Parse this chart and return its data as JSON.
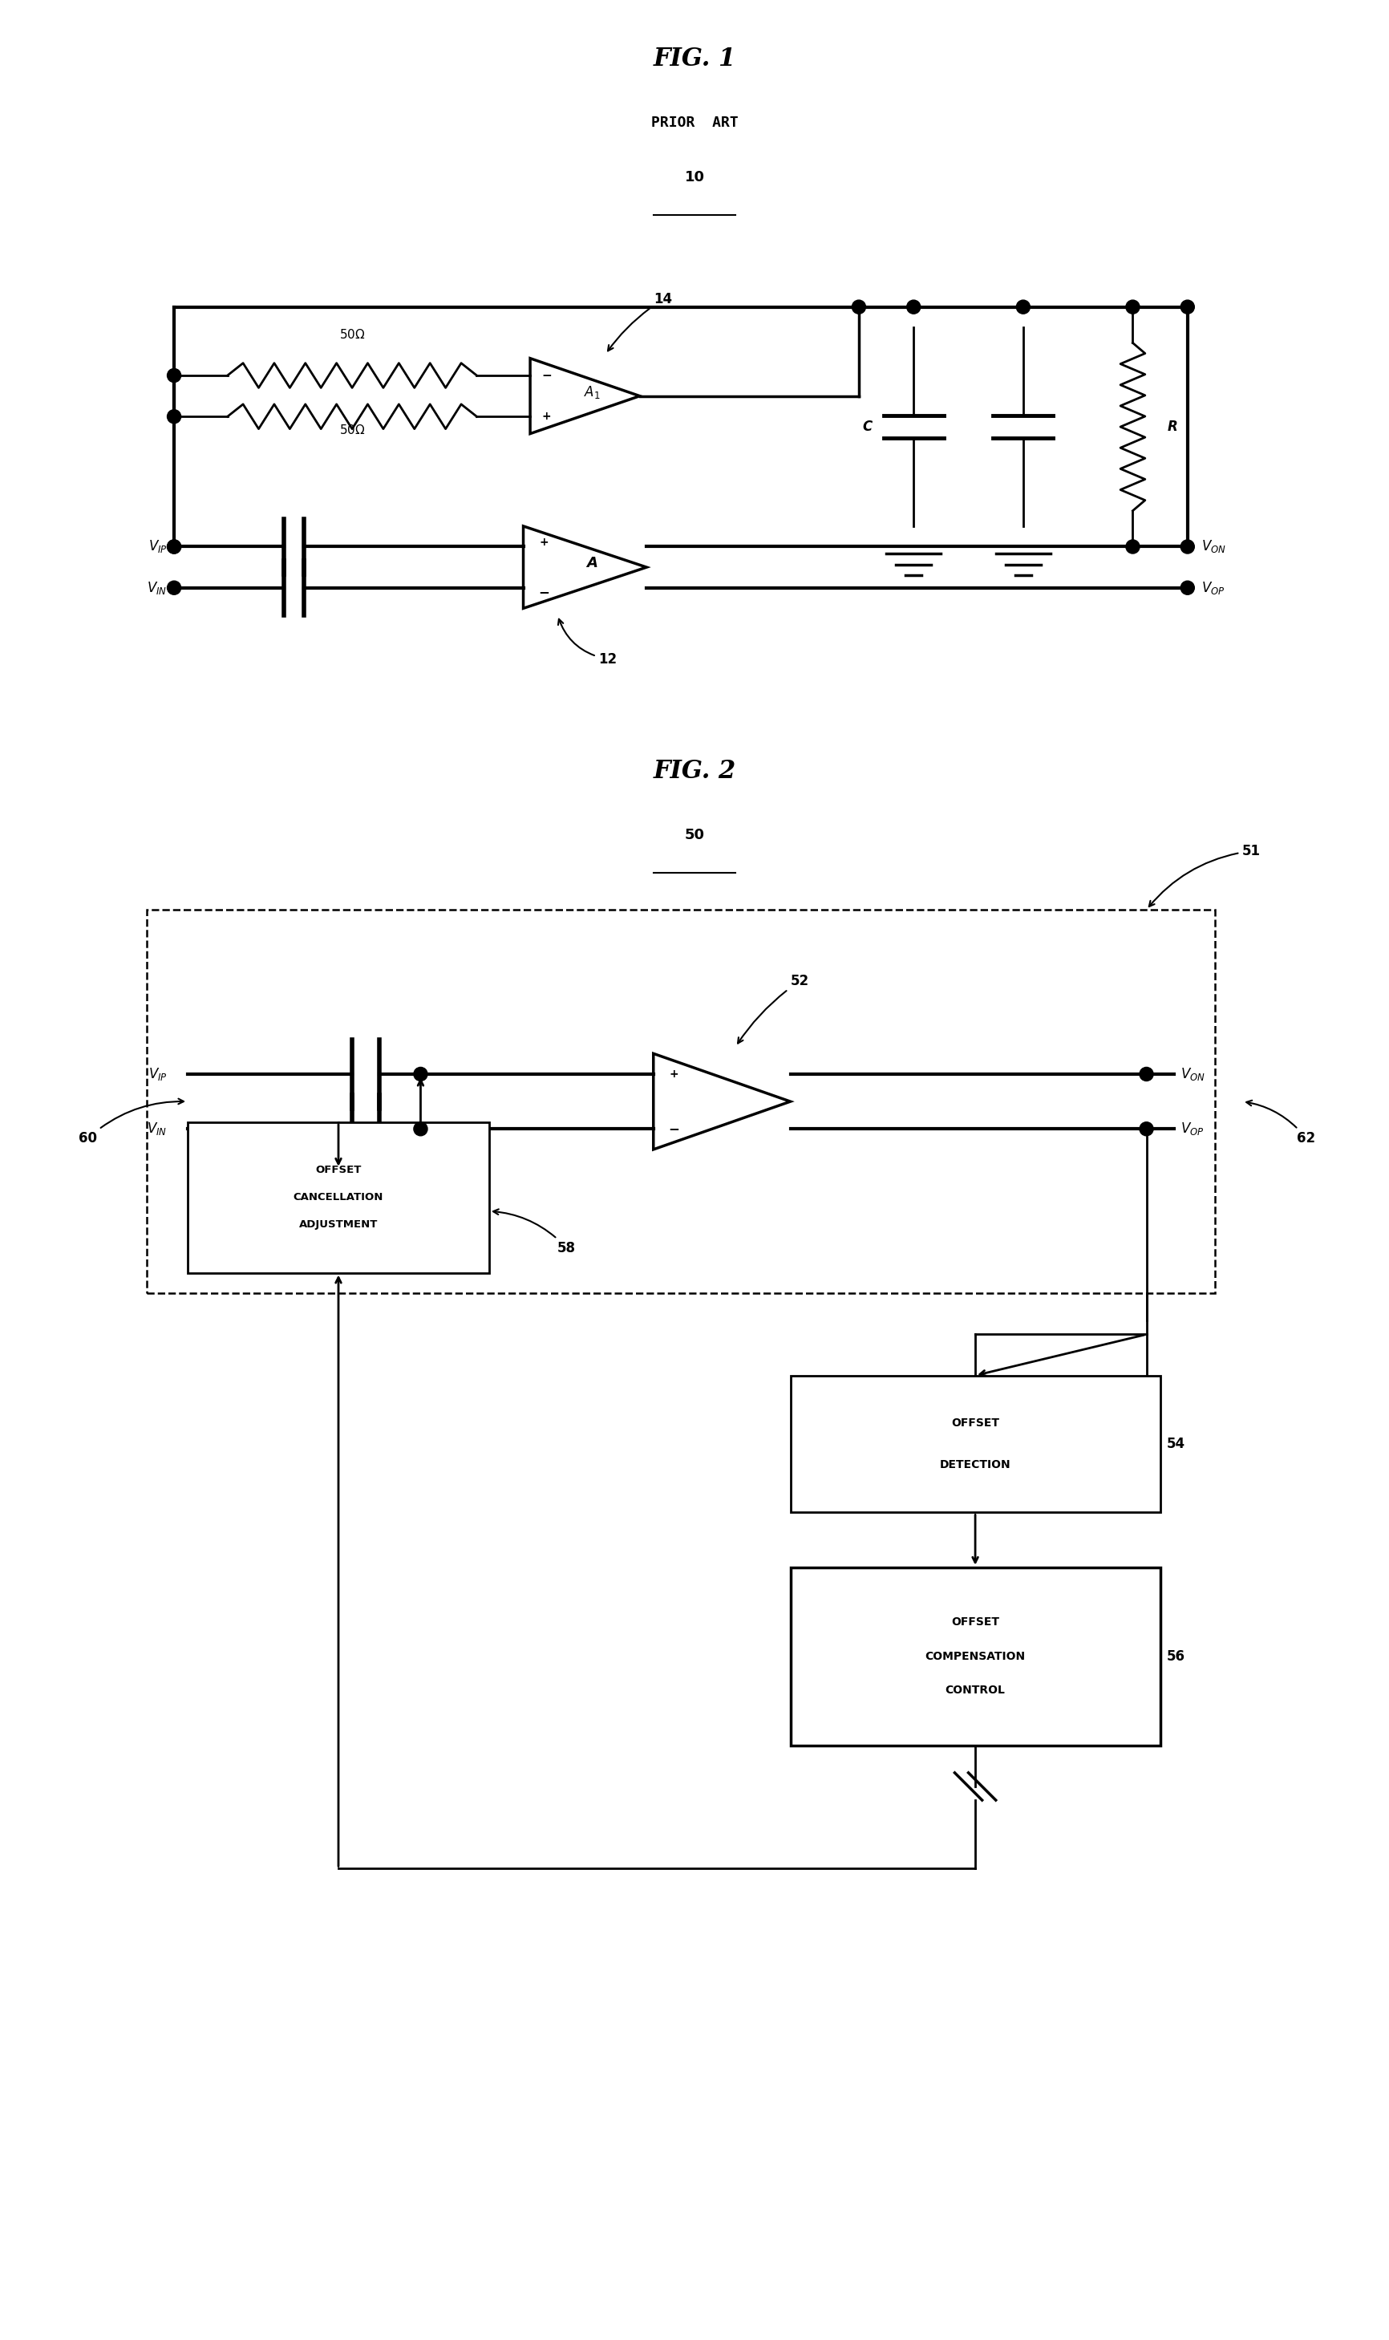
{
  "fig_width": 17.32,
  "fig_height": 29.17,
  "bg_color": "#ffffff",
  "lw": 2.0,
  "tlw": 3.0,
  "fig1_title": "FIG. 1",
  "fig1_subtitle": "PRIOR  ART",
  "fig1_label": "10",
  "fig2_title": "FIG. 2",
  "fig2_label": "50"
}
